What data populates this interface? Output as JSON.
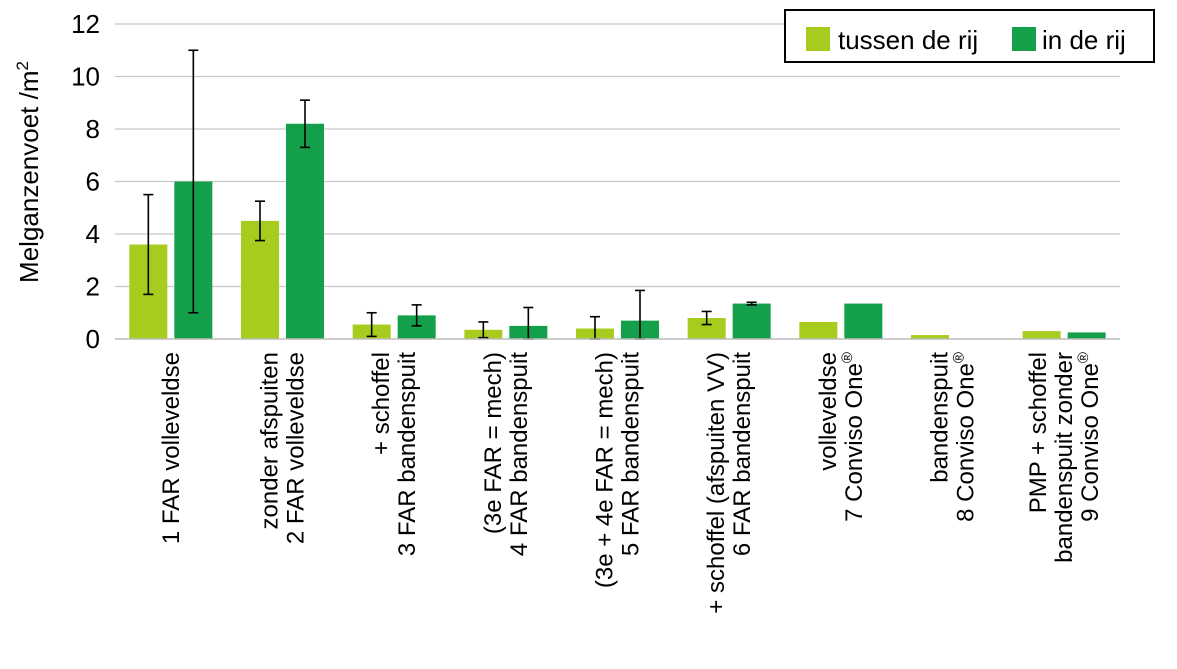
{
  "chart_data": {
    "type": "bar",
    "ylabel": "Melganzenvoet /m",
    "ylabel_superscript": "2",
    "ylim": [
      0,
      12
    ],
    "yticks": [
      0,
      2,
      4,
      6,
      8,
      10,
      12
    ],
    "grid": true,
    "legend_position": "top-right",
    "categories": [
      [
        "1 FAR volleveldse"
      ],
      [
        "2 FAR volleveldse",
        "zonder afspuiten"
      ],
      [
        "3 FAR bandenspuit",
        "+ schoffel"
      ],
      [
        "4 FAR bandenspuit",
        "(3e FAR = mech)"
      ],
      [
        "5 FAR bandenspuit",
        "(3e  + 4e FAR = mech)"
      ],
      [
        "6 FAR bandenspuit",
        "+ schoffel (afspuiten VV)"
      ],
      [
        "7 Conviso One",
        "volleveldse"
      ],
      [
        "8 Conviso One",
        "bandenspuit"
      ],
      [
        "9 Conviso One",
        "bandenspuit  zonder",
        "PMP + schoffel"
      ]
    ],
    "category_superscripts": [
      "",
      "",
      "",
      "",
      "",
      "",
      "®",
      "®",
      "®"
    ],
    "series": [
      {
        "name": "tussen de rij",
        "color": "#a8cc1e",
        "values": [
          3.6,
          4.5,
          0.55,
          0.35,
          0.4,
          0.8,
          0.65,
          0.15,
          0.3
        ],
        "error": [
          1.9,
          0.75,
          0.45,
          0.3,
          0.45,
          0.25,
          null,
          null,
          null
        ]
      },
      {
        "name": "in de rij",
        "color": "#14a04a",
        "values": [
          6.0,
          8.2,
          0.9,
          0.5,
          0.7,
          1.35,
          1.35,
          0,
          0.25
        ],
        "error": [
          5.0,
          0.9,
          0.4,
          0.7,
          1.15,
          0.05,
          null,
          null,
          null
        ]
      }
    ]
  }
}
